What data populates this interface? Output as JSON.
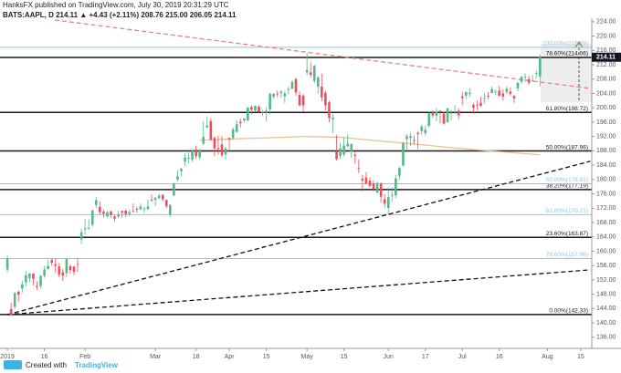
{
  "header": {
    "line1": "HanksFX published on TradingView.com, July 30, 2019 20:31:29 UTC",
    "line2": "BATS:AAPL, D  214.11 ▲ +4.43 (+2.11%)  208.76  215.00  206.05  214.11"
  },
  "footer": {
    "prefix": "Created with",
    "brand": "TradingView"
  },
  "chart_data": {
    "type": "candlestick",
    "up_color": "#53b987",
    "down_color": "#eb4d5c",
    "xlim": [
      -2,
      158
    ],
    "ylim": [
      132.9,
      226
    ],
    "xticks": [
      {
        "value": 0,
        "label": "2019"
      },
      {
        "value": 10,
        "label": "16"
      },
      {
        "value": 21,
        "label": "Feb"
      },
      {
        "value": 40,
        "label": "Mar"
      },
      {
        "value": 51,
        "label": "18"
      },
      {
        "value": 60,
        "label": "Apr"
      },
      {
        "value": 70,
        "label": "15"
      },
      {
        "value": 81,
        "label": "May"
      },
      {
        "value": 91,
        "label": "15"
      },
      {
        "value": 103,
        "label": "Jun"
      },
      {
        "value": 113,
        "label": "17"
      },
      {
        "value": 123,
        "label": "Jul"
      },
      {
        "value": 133,
        "label": "16"
      },
      {
        "value": 146,
        "label": "Aug"
      },
      {
        "value": 155,
        "label": "15"
      }
    ],
    "yticks": [
      {
        "value": 136,
        "label": "136.00"
      },
      {
        "value": 140,
        "label": "140.00"
      },
      {
        "value": 144,
        "label": "144.00"
      },
      {
        "value": 148,
        "label": "148.00"
      },
      {
        "value": 152,
        "label": "152.00"
      },
      {
        "value": 156,
        "label": "156.00"
      },
      {
        "value": 160,
        "label": "160.00"
      },
      {
        "value": 164,
        "label": "164.00"
      },
      {
        "value": 168,
        "label": "168.00"
      },
      {
        "value": 172,
        "label": "172.00"
      },
      {
        "value": 176,
        "label": "176.00"
      },
      {
        "value": 180,
        "label": "180.00"
      },
      {
        "value": 184,
        "label": "184.00"
      },
      {
        "value": 188,
        "label": "188.00"
      },
      {
        "value": 192,
        "label": "192.00"
      },
      {
        "value": 196,
        "label": "196.00"
      },
      {
        "value": 200,
        "label": "200.00"
      },
      {
        "value": 204,
        "label": "204.00"
      },
      {
        "value": 208,
        "label": "208.00"
      },
      {
        "value": 212,
        "label": "212.00"
      },
      {
        "value": 216,
        "label": "216.00"
      },
      {
        "value": 220,
        "label": "220.00"
      },
      {
        "value": 224,
        "label": "224.00"
      }
    ],
    "last_price": 214.11,
    "open": [
      154.9,
      143.9,
      144.5,
      148.7,
      149.6,
      151.3,
      152.5,
      153.8,
      150.3,
      150.3,
      153.1,
      155.0,
      157.5,
      156.4,
      155.8,
      154.1,
      153.9,
      155.8,
      155.7,
      156.4,
      163.3,
      166.1,
      166.5,
      167.4,
      172.9,
      172.4,
      171.0,
      169.7,
      171.1,
      169.7,
      169.7,
      171.2,
      171.3,
      170.4,
      171.2,
      171.8,
      171.7,
      171.9,
      171.8,
      174.3,
      174.3,
      174.8,
      175.7,
      174.3,
      170.3,
      175.5,
      180.0,
      182.3,
      185.0,
      185.8,
      185.5,
      188.4,
      186.2,
      190.0,
      194.5,
      196.3,
      191.6,
      188.8,
      189.8,
      187.0,
      191.6,
      191.6,
      193.3,
      196.1,
      196.5,
      196.5,
      200.2,
      199.2,
      200.3,
      198.6,
      198.6,
      199.5,
      203.1,
      204.0,
      204.1,
      203.2,
      205.0,
      205.3,
      208.0,
      203.6,
      203.4,
      209.9,
      209.9,
      207.5,
      205.9,
      205.9,
      204.2,
      201.5,
      196.8,
      187.7,
      186.6,
      187.0,
      189.3,
      187.9,
      186.9,
      183.2,
      180.2,
      180.6,
      179.7,
      178.9,
      176.4,
      178.9,
      174.5,
      172.1,
      175.4,
      175.6,
      181.0,
      183.9,
      191.3,
      191.6,
      191.0,
      193.0,
      193.5,
      192.9,
      194.9,
      198.7,
      197.8,
      199.2,
      198.4,
      196.0,
      198.5,
      198.9,
      199.2,
      203.2,
      203.4,
      203.9,
      200.8,
      200.8,
      201.4,
      202.5,
      203.3,
      204.1,
      204.3,
      204.8,
      204.0,
      204.4,
      204.5,
      203.4,
      205.4,
      207.2,
      208.7,
      208.0,
      207.7,
      209.5,
      208.76
    ],
    "high": [
      158.9,
      145.7,
      148.6,
      149.0,
      151.8,
      154.5,
      153.9,
      153.9,
      151.6,
      153.4,
      155.9,
      157.7,
      157.9,
      157.9,
      156.7,
      155.1,
      157.9,
      156.3,
      156.0,
      158.1,
      166.2,
      169.0,
      168.9,
      171.7,
      175.1,
      173.9,
      171.7,
      171.2,
      171.4,
      170.2,
      171.3,
      171.3,
      171.7,
      171.7,
      173.3,
      172.4,
      173.3,
      172.4,
      174.3,
      175.9,
      175.2,
      176.0,
      175.9,
      174.4,
      173.1,
      179.1,
      182.7,
      183.3,
      187.3,
      187.6,
      188.4,
      189.5,
      188.5,
      196.3,
      197.7,
      197.0,
      192.0,
      192.2,
      192.2,
      189.1,
      191.7,
      194.5,
      196.5,
      197.0,
      197.1,
      200.2,
      200.7,
      200.2,
      200.8,
      199.4,
      200.1,
      204.2,
      204.0,
      204.8,
      205.0,
      204.7,
      205.9,
      207.8,
      208.4,
      204.5,
      203.9,
      215.3,
      212.7,
      212.0,
      208.8,
      209.5,
      204.8,
      202.0,
      198.3,
      192.5,
      190.2,
      191.8,
      192.5,
      190.1,
      187.7,
      185.6,
      181.3,
      182.1,
      180.6,
      179.8,
      179.4,
      179.2,
      175.9,
      177.9,
      177.9,
      181.3,
      183.5,
      190.5,
      192.6,
      193.0,
      192.3,
      193.5,
      195.2,
      195.0,
      198.9,
      199.3,
      199.9,
      199.3,
      198.9,
      200.0,
      199.4,
      200.7,
      199.8,
      204.5,
      204.6,
      205.4,
      201.4,
      202.0,
      203.1,
      204.0,
      204.4,
      205.9,
      205.1,
      206.1,
      205.1,
      206.0,
      205.7,
      203.5,
      207.2,
      209.0,
      209.6,
      209.0,
      209.2,
      210.5,
      215.0
    ],
    "low": [
      154.2,
      142.0,
      143.9,
      145.9,
      148.5,
      150.1,
      151.5,
      150.5,
      149.2,
      149.6,
      152.6,
      155.0,
      155.9,
      153.9,
      152.7,
      151.7,
      152.8,
      153.7,
      153.3,
      154.2,
      162.0,
      164.6,
      165.9,
      166.9,
      172.0,
      170.3,
      169.4,
      169.4,
      169.3,
      168.3,
      169.3,
      169.5,
      169.4,
      169.8,
      170.8,
      170.7,
      171.4,
      170.7,
      171.5,
      173.9,
      172.6,
      174.5,
      173.9,
      172.0,
      169.5,
      175.4,
      179.4,
      180.9,
      183.7,
      184.5,
      185.0,
      185.8,
      185.5,
      189.6,
      194.4,
      190.9,
      186.5,
      186.9,
      186.2,
      185.5,
      188.4,
      191.0,
      192.9,
      194.5,
      195.9,
      196.2,
      198.2,
      199.0,
      198.5,
      197.7,
      196.2,
      198.1,
      202.5,
      203.0,
      202.9,
      201.3,
      203.7,
      205.3,
      203.4,
      200.5,
      198.8,
      209.2,
      208.5,
      206.9,
      203.9,
      201.9,
      199.3,
      196.0,
      193.0,
      185.3,
      185.7,
      186.5,
      188.9,
      186.0,
      184.4,
      181.8,
      176.7,
      178.6,
      177.8,
      176.7,
      176.0,
      173.5,
      172.2,
      170.3,
      173.8,
      174.8,
      179.9,
      183.7,
      188.3,
      189.3,
      189.8,
      188.5,
      192.5,
      192.2,
      194.6,
      197.3,
      196.3,
      195.7,
      195.3,
      195.9,
      196.6,
      198.2,
      196.9,
      200.8,
      202.4,
      203.1,
      198.4,
      199.4,
      200.3,
      201.2,
      202.4,
      204.0,
      203.5,
      203.0,
      202.0,
      203.8,
      203.4,
      201.4,
      204.6,
      206.7,
      207.3,
      206.4,
      207.3,
      208.2,
      206.05
    ],
    "close": [
      157.9,
      142.2,
      148.3,
      147.9,
      150.8,
      153.3,
      153.8,
      152.3,
      150.0,
      153.1,
      154.9,
      155.9,
      156.8,
      155.9,
      153.4,
      153.2,
      157.8,
      154.7,
      154.2,
      156.3,
      165.3,
      166.4,
      166.5,
      171.3,
      174.2,
      170.9,
      170.4,
      170.9,
      170.1,
      169.1,
      170.2,
      170.8,
      170.4,
      170.9,
      171.1,
      171.7,
      172.5,
      171.9,
      172.5,
      174.2,
      174.9,
      175.5,
      174.5,
      172.5,
      172.9,
      178.9,
      180.9,
      183.0,
      186.1,
      186.1,
      188.0,
      186.5,
      188.0,
      191.9,
      195.1,
      191.1,
      188.7,
      188.5,
      186.8,
      188.7,
      191.2,
      194.0,
      195.4,
      195.7,
      197.0,
      200.1,
      199.5,
      200.6,
      198.9,
      198.9,
      199.2,
      203.9,
      203.9,
      203.8,
      204.5,
      204.0,
      205.3,
      207.2,
      204.3,
      200.7,
      200.7,
      210.5,
      209.2,
      211.7,
      208.5,
      202.9,
      200.7,
      197.2,
      197.2,
      185.7,
      188.7,
      189.5,
      190.0,
      189.9,
      186.6,
      183.1,
      179.7,
      178.9,
      178.2,
      177.4,
      179.0,
      175.2,
      173.3,
      175.1,
      175.6,
      180.3,
      183.2,
      190.1,
      192.1,
      192.1,
      190.8,
      192.7,
      194.8,
      193.9,
      198.5,
      197.9,
      198.9,
      199.0,
      195.6,
      199.8,
      198.6,
      199.0,
      197.9,
      202.7,
      204.4,
      204.2,
      200.0,
      200.7,
      200.6,
      202.7,
      203.2,
      205.2,
      204.5,
      203.4,
      203.1,
      205.3,
      203.9,
      202.6,
      207.0,
      208.6,
      208.7,
      207.0,
      207.7,
      209.7,
      214.11
    ],
    "moving_average": {
      "color": "#e8c48f",
      "x": [
        52,
        60,
        70,
        80,
        90,
        100,
        110,
        120,
        130,
        140,
        144
      ],
      "values": [
        190.9,
        191.3,
        191.6,
        192.0,
        191.8,
        190.8,
        189.9,
        188.9,
        188.0,
        187.2,
        186.9
      ]
    },
    "fib_levels": [
      {
        "value": 142.33,
        "label": "0.00%(142.33)",
        "color": "#1a1a1a"
      },
      {
        "value": 163.87,
        "label": "23.60%(163.87)",
        "color": "#1a1a1a"
      },
      {
        "value": 177.19,
        "label": "38.20%(177.19)",
        "color": "#1a1a1a"
      },
      {
        "value": 187.96,
        "label": "50.00%(187.96)",
        "color": "#1a1a1a"
      },
      {
        "value": 198.72,
        "label": "61.80%(198.72)",
        "color": "#1a1a1a"
      },
      {
        "value": 214.06,
        "label": "78.60%(214.06)",
        "color": "#1a1a1a"
      },
      {
        "value": 157.96,
        "label": "78.60%(157.96)",
        "color": "#8ec8e0"
      },
      {
        "value": 170.21,
        "label": "61.80%(170.21)",
        "color": "#8ec8e0"
      },
      {
        "value": 178.81,
        "label": "50.00%(178.81)",
        "color": "#8ec8e0"
      },
      {
        "value": 216.88,
        "label": "100.00%(216.88)",
        "color": "#8ec8e0"
      }
    ],
    "trendlines": [
      {
        "color": "#e0838c",
        "x": [
          12.8,
          157.6
        ],
        "values": [
          224.5,
          205.4
        ]
      },
      {
        "color": "#111111",
        "x": [
          0,
          157.6
        ],
        "values": [
          142.33,
          185.1
        ]
      },
      {
        "color": "#111111",
        "x": [
          0,
          157.6
        ],
        "values": [
          142.33,
          154.8
        ]
      }
    ]
  }
}
